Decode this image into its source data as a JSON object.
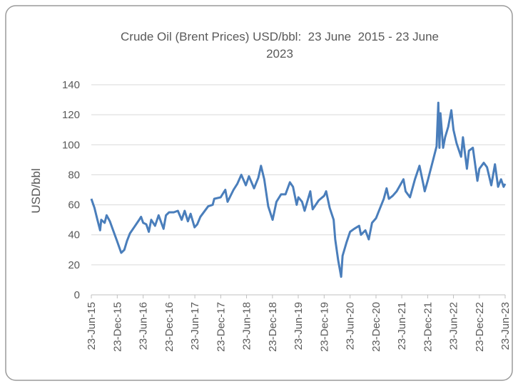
{
  "chart_data": {
    "type": "line",
    "title": "Crude Oil (Brent Prices) USD/bbl:  23 June  2015 - 23 June  2023",
    "y_label": "USD/bbl",
    "color": "#4a7ebb",
    "grid": true,
    "ylim": [
      0,
      140
    ],
    "yticks": [
      0,
      20,
      40,
      60,
      80,
      100,
      120,
      140
    ],
    "xlim": [
      "2015-06-23",
      "2023-06-23"
    ],
    "xticks": [
      {
        "value": "2015-06-23",
        "label": "23-Jun-15"
      },
      {
        "value": "2015-12-23",
        "label": "23-Dec-15"
      },
      {
        "value": "2016-06-23",
        "label": "23-Jun-16"
      },
      {
        "value": "2016-12-23",
        "label": "23-Dec-16"
      },
      {
        "value": "2017-06-23",
        "label": "23-Jun-17"
      },
      {
        "value": "2017-12-23",
        "label": "23-Dec-17"
      },
      {
        "value": "2018-06-23",
        "label": "23-Jun-18"
      },
      {
        "value": "2018-12-23",
        "label": "23-Dec-18"
      },
      {
        "value": "2019-06-23",
        "label": "23-Jun-19"
      },
      {
        "value": "2019-12-23",
        "label": "23-Dec-19"
      },
      {
        "value": "2020-06-23",
        "label": "23-Jun-20"
      },
      {
        "value": "2020-12-23",
        "label": "23-Dec-20"
      },
      {
        "value": "2021-06-23",
        "label": "23-Jun-21"
      },
      {
        "value": "2021-12-23",
        "label": "23-Dec-21"
      },
      {
        "value": "2022-06-23",
        "label": "23-Jun-22"
      },
      {
        "value": "2022-12-23",
        "label": "23-Dec-22"
      },
      {
        "value": "2023-06-23",
        "label": "23-Jun-23"
      }
    ],
    "x": [
      "2015-06-23",
      "2015-07-15",
      "2015-08-05",
      "2015-08-24",
      "2015-09-01",
      "2015-09-25",
      "2015-10-09",
      "2015-11-01",
      "2015-11-20",
      "2015-12-21",
      "2016-01-20",
      "2016-02-11",
      "2016-03-01",
      "2016-03-22",
      "2016-04-20",
      "2016-05-26",
      "2016-06-08",
      "2016-06-23",
      "2016-07-15",
      "2016-08-02",
      "2016-08-19",
      "2016-09-15",
      "2016-10-10",
      "2016-11-14",
      "2016-12-01",
      "2016-12-23",
      "2017-01-25",
      "2017-02-23",
      "2017-03-22",
      "2017-04-12",
      "2017-05-05",
      "2017-05-24",
      "2017-06-21",
      "2017-07-10",
      "2017-08-01",
      "2017-09-25",
      "2017-10-27",
      "2017-11-07",
      "2017-12-22",
      "2018-01-24",
      "2018-02-09",
      "2018-03-23",
      "2018-04-19",
      "2018-05-17",
      "2018-06-18",
      "2018-07-10",
      "2018-08-15",
      "2018-09-14",
      "2018-10-03",
      "2018-10-26",
      "2018-11-23",
      "2018-12-24",
      "2019-01-20",
      "2019-02-22",
      "2019-03-25",
      "2019-04-25",
      "2019-05-17",
      "2019-06-12",
      "2019-06-24",
      "2019-07-20",
      "2019-08-07",
      "2019-09-16",
      "2019-10-03",
      "2019-11-15",
      "2019-12-23",
      "2020-01-06",
      "2020-01-31",
      "2020-02-28",
      "2020-03-10",
      "2020-03-31",
      "2020-04-21",
      "2020-05-01",
      "2020-05-29",
      "2020-06-23",
      "2020-07-22",
      "2020-08-26",
      "2020-09-08",
      "2020-10-09",
      "2020-11-02",
      "2020-11-25",
      "2020-12-23",
      "2021-01-13",
      "2021-02-16",
      "2021-03-08",
      "2021-03-24",
      "2021-04-20",
      "2021-05-18",
      "2021-06-23",
      "2021-07-05",
      "2021-07-20",
      "2021-08-20",
      "2021-09-24",
      "2021-10-26",
      "2021-11-26",
      "2021-12-02",
      "2021-12-23",
      "2022-01-25",
      "2022-02-24",
      "2022-03-08",
      "2022-03-16",
      "2022-03-23",
      "2022-04-11",
      "2022-04-25",
      "2022-05-17",
      "2022-06-08",
      "2022-06-23",
      "2022-07-15",
      "2022-08-16",
      "2022-08-29",
      "2022-09-26",
      "2022-10-10",
      "2022-11-07",
      "2022-12-09",
      "2022-12-23",
      "2023-01-23",
      "2023-02-15",
      "2023-03-17",
      "2023-04-12",
      "2023-05-04",
      "2023-05-25",
      "2023-06-12",
      "2023-06-23"
    ],
    "values": [
      64,
      58,
      50,
      43,
      50,
      48,
      53,
      49,
      44,
      36,
      28,
      30,
      36,
      41,
      45,
      50,
      52,
      48,
      47,
      42,
      50,
      46,
      53,
      44,
      53,
      55,
      55,
      56,
      50,
      56,
      49,
      54,
      45,
      47,
      52,
      59,
      60,
      64,
      65,
      70,
      62,
      70,
      74,
      80,
      73,
      79,
      71,
      78,
      86,
      77,
      59,
      50,
      62,
      67,
      67,
      75,
      72,
      60,
      65,
      62,
      56,
      69,
      57,
      63,
      66,
      69,
      58,
      50,
      37,
      23,
      12,
      26,
      35,
      42,
      44,
      46,
      40,
      43,
      37,
      48,
      51,
      56,
      64,
      71,
      64,
      66,
      69,
      75,
      77,
      69,
      65,
      77,
      86,
      72,
      69,
      76,
      88,
      99,
      128,
      98,
      121,
      98,
      105,
      112,
      123,
      110,
      101,
      92,
      105,
      84,
      96,
      98,
      76,
      84,
      88,
      85,
      73,
      87,
      72,
      77,
      72,
      74
    ]
  }
}
